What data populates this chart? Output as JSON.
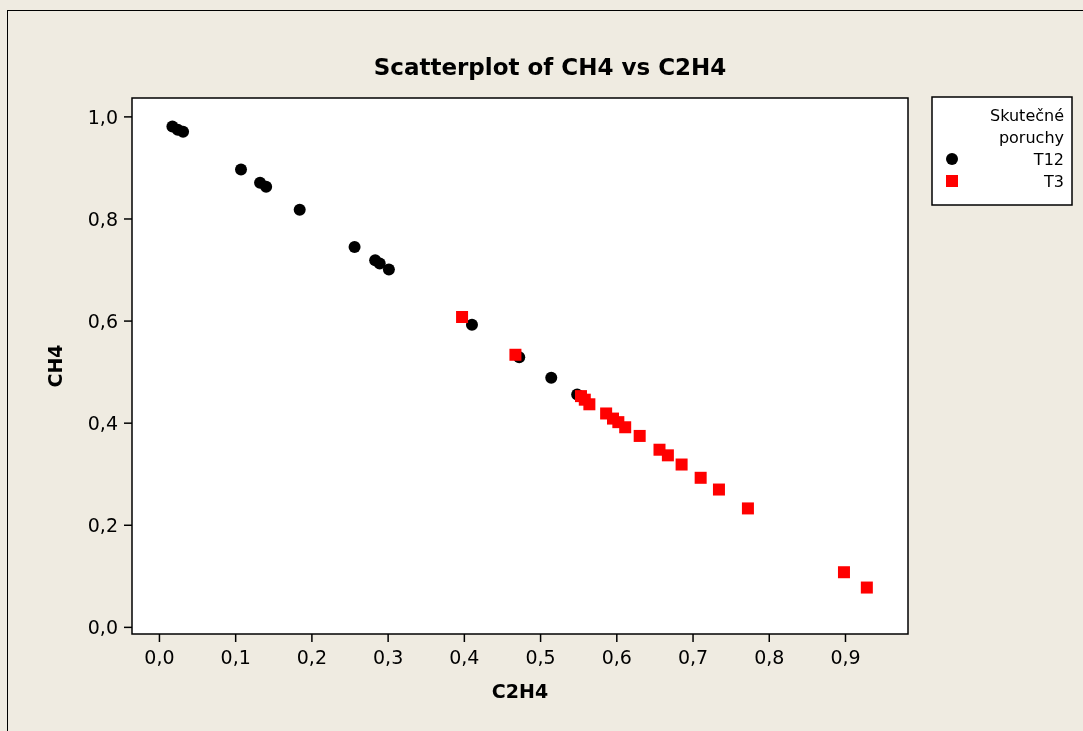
{
  "chart_data": {
    "type": "scatter",
    "title": "Scatterplot of CH4 vs C2H4",
    "xlabel": "C2H4",
    "ylabel": "CH4",
    "legend_title": "Skutečné poruchy",
    "legend": "top right",
    "grid": false,
    "xlim": [
      -0.036,
      0.982
    ],
    "ylim": [
      -0.013,
      1.037
    ],
    "xticks": [
      {
        "value": 0,
        "label": "0,0"
      },
      {
        "value": 0.1,
        "label": "0,1"
      },
      {
        "value": 0.2,
        "label": "0,2"
      },
      {
        "value": 0.3,
        "label": "0,3"
      },
      {
        "value": 0.4,
        "label": "0,4"
      },
      {
        "value": 0.5,
        "label": "0,5"
      },
      {
        "value": 0.6,
        "label": "0,6"
      },
      {
        "value": 0.7,
        "label": "0,7"
      },
      {
        "value": 0.8,
        "label": "0,8"
      },
      {
        "value": 0.9,
        "label": "0,9"
      }
    ],
    "yticks": [
      {
        "value": 0,
        "label": "0,0"
      },
      {
        "value": 0.2,
        "label": "0,2"
      },
      {
        "value": 0.4,
        "label": "0,4"
      },
      {
        "value": 0.6,
        "label": "0,6"
      },
      {
        "value": 0.8,
        "label": "0,8"
      },
      {
        "value": 1,
        "label": "1,0"
      }
    ],
    "series": [
      {
        "name": "T12",
        "color": "#000000",
        "marker": "circle",
        "x": [
          0.017,
          0.024,
          0.031,
          0.107,
          0.132,
          0.14,
          0.184,
          0.256,
          0.283,
          0.289,
          0.301,
          0.41,
          0.472,
          0.514,
          0.548
        ],
        "values": [
          0.981,
          0.975,
          0.971,
          0.897,
          0.871,
          0.863,
          0.818,
          0.745,
          0.719,
          0.713,
          0.701,
          0.593,
          0.529,
          0.489,
          0.456
        ]
      },
      {
        "name": "T3",
        "color": "#ff0000",
        "marker": "square",
        "x": [
          0.397,
          0.467,
          0.553,
          0.558,
          0.564,
          0.586,
          0.595,
          0.602,
          0.611,
          0.63,
          0.656,
          0.667,
          0.685,
          0.71,
          0.734,
          0.772,
          0.898,
          0.928
        ],
        "values": [
          0.608,
          0.534,
          0.453,
          0.446,
          0.437,
          0.419,
          0.409,
          0.402,
          0.392,
          0.375,
          0.348,
          0.337,
          0.319,
          0.293,
          0.27,
          0.233,
          0.108,
          0.078
        ]
      }
    ]
  }
}
